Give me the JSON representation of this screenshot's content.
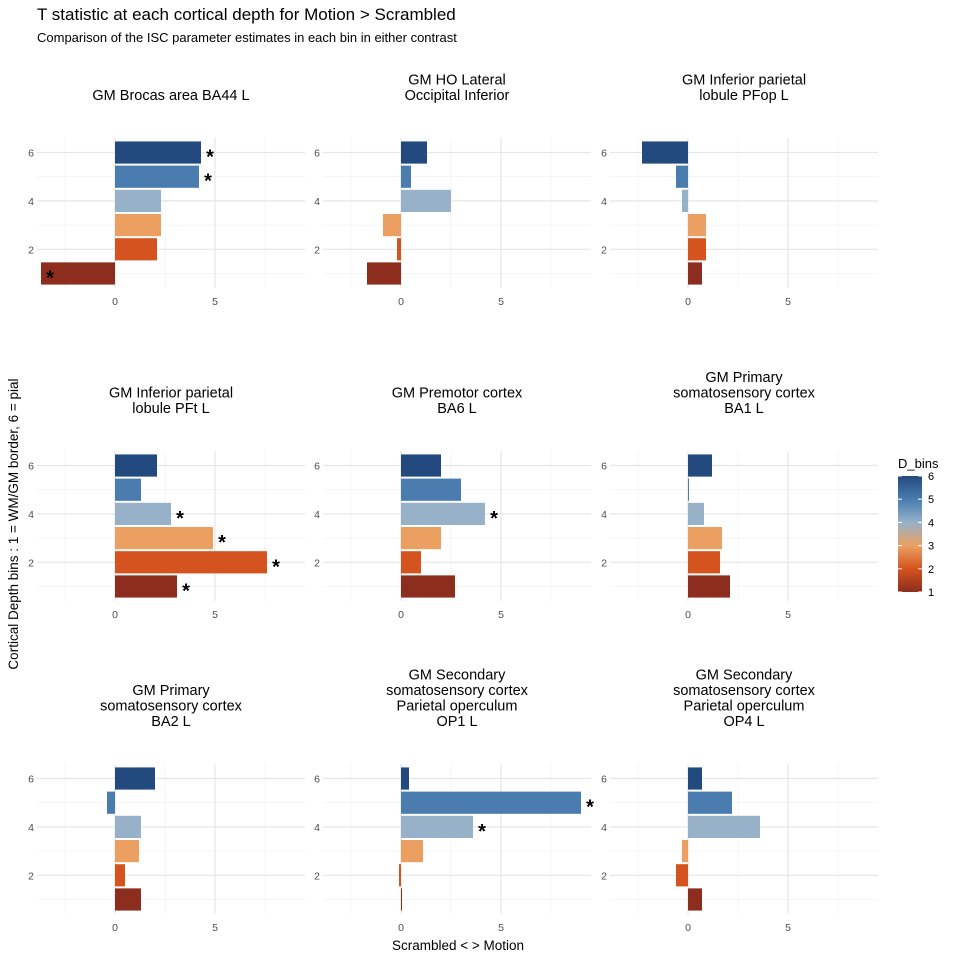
{
  "chart_data": {
    "type": "bar",
    "orientation": "horizontal",
    "title": "T statistic at each cortical depth for Motion > Scrambled",
    "subtitle": "Comparison of the ISC parameter estimates in each bin in either contrast",
    "xlabel": "Scrambled <   > Motion",
    "ylabel": "Cortical Depth bins :  1 = WM/GM border, 6 = pial",
    "xlim": [
      -3.9,
      9.5
    ],
    "x_ticks": [
      0,
      5
    ],
    "y_ticks": [
      2,
      4,
      6
    ],
    "grid": true,
    "legend": {
      "title": "D_bins",
      "position": "right",
      "type": "colorbar",
      "range": [
        1,
        6
      ],
      "ticks": [
        1,
        2,
        3,
        4,
        5,
        6
      ],
      "colors": {
        "1": "#8c2d1e",
        "2": "#d4531f",
        "3": "#eba062",
        "4": "#96b1c8",
        "5": "#4a7cb0",
        "6": "#234a7e"
      }
    },
    "star_symbol": "*",
    "panels": [
      {
        "title": [
          "GM Brocas area BA44 L"
        ],
        "bins": [
          1,
          2,
          3,
          4,
          5,
          6
        ],
        "values": [
          -3.7,
          2.1,
          2.3,
          2.3,
          4.2,
          4.3
        ],
        "significant": [
          1,
          5,
          6
        ]
      },
      {
        "title": [
          "GM HO Lateral",
          "Occipital Inferior"
        ],
        "bins": [
          1,
          2,
          3,
          4,
          5,
          6
        ],
        "values": [
          -1.7,
          -0.2,
          -0.9,
          2.5,
          0.5,
          1.3
        ],
        "significant": []
      },
      {
        "title": [
          "GM Inferior parietal",
          "lobule PFop L"
        ],
        "bins": [
          1,
          2,
          3,
          4,
          5,
          6
        ],
        "values": [
          0.7,
          0.9,
          0.9,
          -0.3,
          -0.6,
          -2.3
        ],
        "significant": []
      },
      {
        "title": [
          "GM Inferior parietal",
          "lobule PFt L"
        ],
        "bins": [
          1,
          2,
          3,
          4,
          5,
          6
        ],
        "values": [
          3.1,
          7.6,
          4.9,
          2.8,
          1.3,
          2.1
        ],
        "significant": [
          1,
          2,
          3,
          4
        ]
      },
      {
        "title": [
          "GM Premotor cortex",
          "BA6 L"
        ],
        "bins": [
          1,
          2,
          3,
          4,
          5,
          6
        ],
        "values": [
          2.7,
          1.0,
          2.0,
          4.2,
          3.0,
          2.0
        ],
        "significant": [
          4
        ]
      },
      {
        "title": [
          "GM Primary",
          "somatosensory cortex",
          "BA1 L"
        ],
        "bins": [
          1,
          2,
          3,
          4,
          5,
          6
        ],
        "values": [
          2.1,
          1.6,
          1.7,
          0.8,
          0.05,
          1.2
        ],
        "significant": []
      },
      {
        "title": [
          "GM Primary",
          "somatosensory cortex",
          "BA2 L"
        ],
        "bins": [
          1,
          2,
          3,
          4,
          5,
          6
        ],
        "values": [
          1.3,
          0.5,
          1.2,
          1.3,
          -0.4,
          2.0
        ],
        "significant": []
      },
      {
        "title": [
          "GM Secondary",
          "somatosensory cortex",
          "Parietal operculum",
          "OP1 L"
        ],
        "bins": [
          1,
          2,
          3,
          4,
          5,
          6
        ],
        "values": [
          0.05,
          -0.1,
          1.1,
          3.6,
          9.0,
          0.4
        ],
        "significant": [
          4,
          5
        ]
      },
      {
        "title": [
          "GM Secondary",
          "somatosensory cortex",
          "Parietal operculum",
          "OP4 L"
        ],
        "bins": [
          1,
          2,
          3,
          4,
          5,
          6
        ],
        "values": [
          0.7,
          -0.6,
          -0.3,
          3.6,
          2.2,
          0.7
        ],
        "significant": []
      }
    ]
  }
}
